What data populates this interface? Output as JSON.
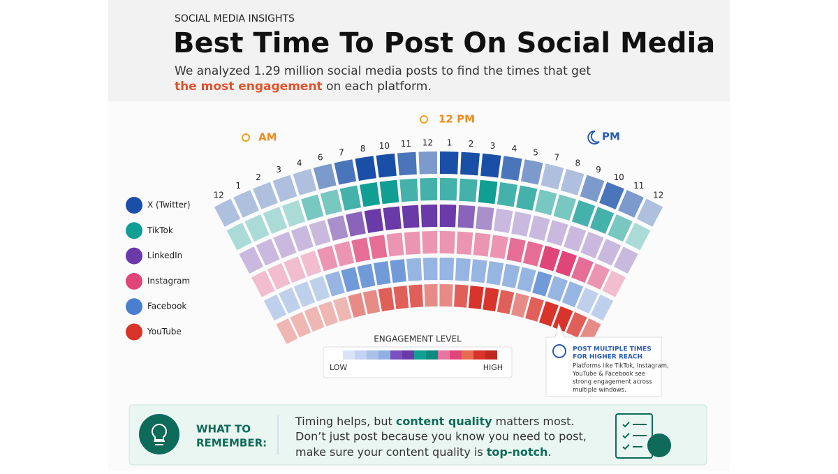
{
  "header": {
    "kicker": "SOCIAL MEDIA INSIGHTS",
    "title": "Best Time To Post On Social Media",
    "subtitle_line1": "We analyzed 1.29 million social media posts to find the times that get",
    "subtitle_highlight": "the most engagement",
    "subtitle_rest": " on each platform."
  },
  "clock": {
    "am": "AM",
    "noon": "12 PM",
    "pm": "PM",
    "hours": [
      "12",
      "1",
      "2",
      "3",
      "4",
      "6",
      "7",
      "8",
      "10",
      "11",
      "12",
      "1",
      "2",
      "3",
      "4",
      "5",
      "7",
      "8",
      "9",
      "10",
      "11",
      "12"
    ]
  },
  "heatmap": {
    "platforms": [
      {
        "name": "X (Twitter)",
        "color": "#1a4fa8",
        "levels": [
          1,
          1,
          1,
          1,
          1,
          2,
          3,
          4,
          4,
          3,
          2,
          4,
          4,
          4,
          3,
          2,
          1,
          1,
          2,
          3,
          2,
          1
        ]
      },
      {
        "name": "TikTok",
        "color": "#119e93",
        "levels": [
          1,
          1,
          1,
          1,
          2,
          2,
          3,
          4,
          4,
          3,
          3,
          3,
          3,
          4,
          3,
          3,
          2,
          2,
          3,
          3,
          2,
          1
        ]
      },
      {
        "name": "LinkedIn",
        "color": "#6a3aa8",
        "levels": [
          1,
          1,
          1,
          1,
          1,
          2,
          3,
          4,
          4,
          4,
          4,
          4,
          3,
          2,
          1,
          1,
          1,
          1,
          1,
          1,
          1,
          1
        ]
      },
      {
        "name": "Instagram",
        "color": "#e0457a",
        "levels": [
          1,
          1,
          1,
          1,
          2,
          2,
          3,
          3,
          2,
          2,
          2,
          2,
          2,
          2,
          2,
          3,
          3,
          4,
          4,
          3,
          2,
          1
        ]
      },
      {
        "name": "Facebook",
        "color": "#4a7fd0",
        "levels": [
          1,
          1,
          1,
          1,
          2,
          3,
          3,
          3,
          3,
          2,
          2,
          2,
          2,
          2,
          2,
          2,
          2,
          3,
          2,
          2,
          1,
          1
        ]
      },
      {
        "name": "YouTube",
        "color": "#d8342c",
        "levels": [
          1,
          1,
          1,
          1,
          1,
          2,
          2,
          3,
          3,
          3,
          2,
          2,
          3,
          4,
          4,
          3,
          2,
          3,
          4,
          4,
          3,
          2
        ]
      }
    ]
  },
  "legend": {
    "title": "ENGAGEMENT LEVEL",
    "low": "LOW",
    "high": "HIGH"
  },
  "callout": {
    "title_line1": "POST MULTIPLE TIMES",
    "title_line2": "FOR HIGHER REACH",
    "body": [
      "Platforms like TikTok, Instagram,",
      "YouTube & Facebook see",
      "strong engagement across",
      "multiple windows."
    ]
  },
  "remember": {
    "label_line1": "WHAT TO",
    "label_line2": "REMEMBER:",
    "line1": [
      "Timing helps, but ",
      "content quality",
      " matters most."
    ],
    "line2": "Don’t just post because you know you need to post,",
    "line3": [
      "make sure your content quality is ",
      "top-notch",
      "."
    ]
  }
}
